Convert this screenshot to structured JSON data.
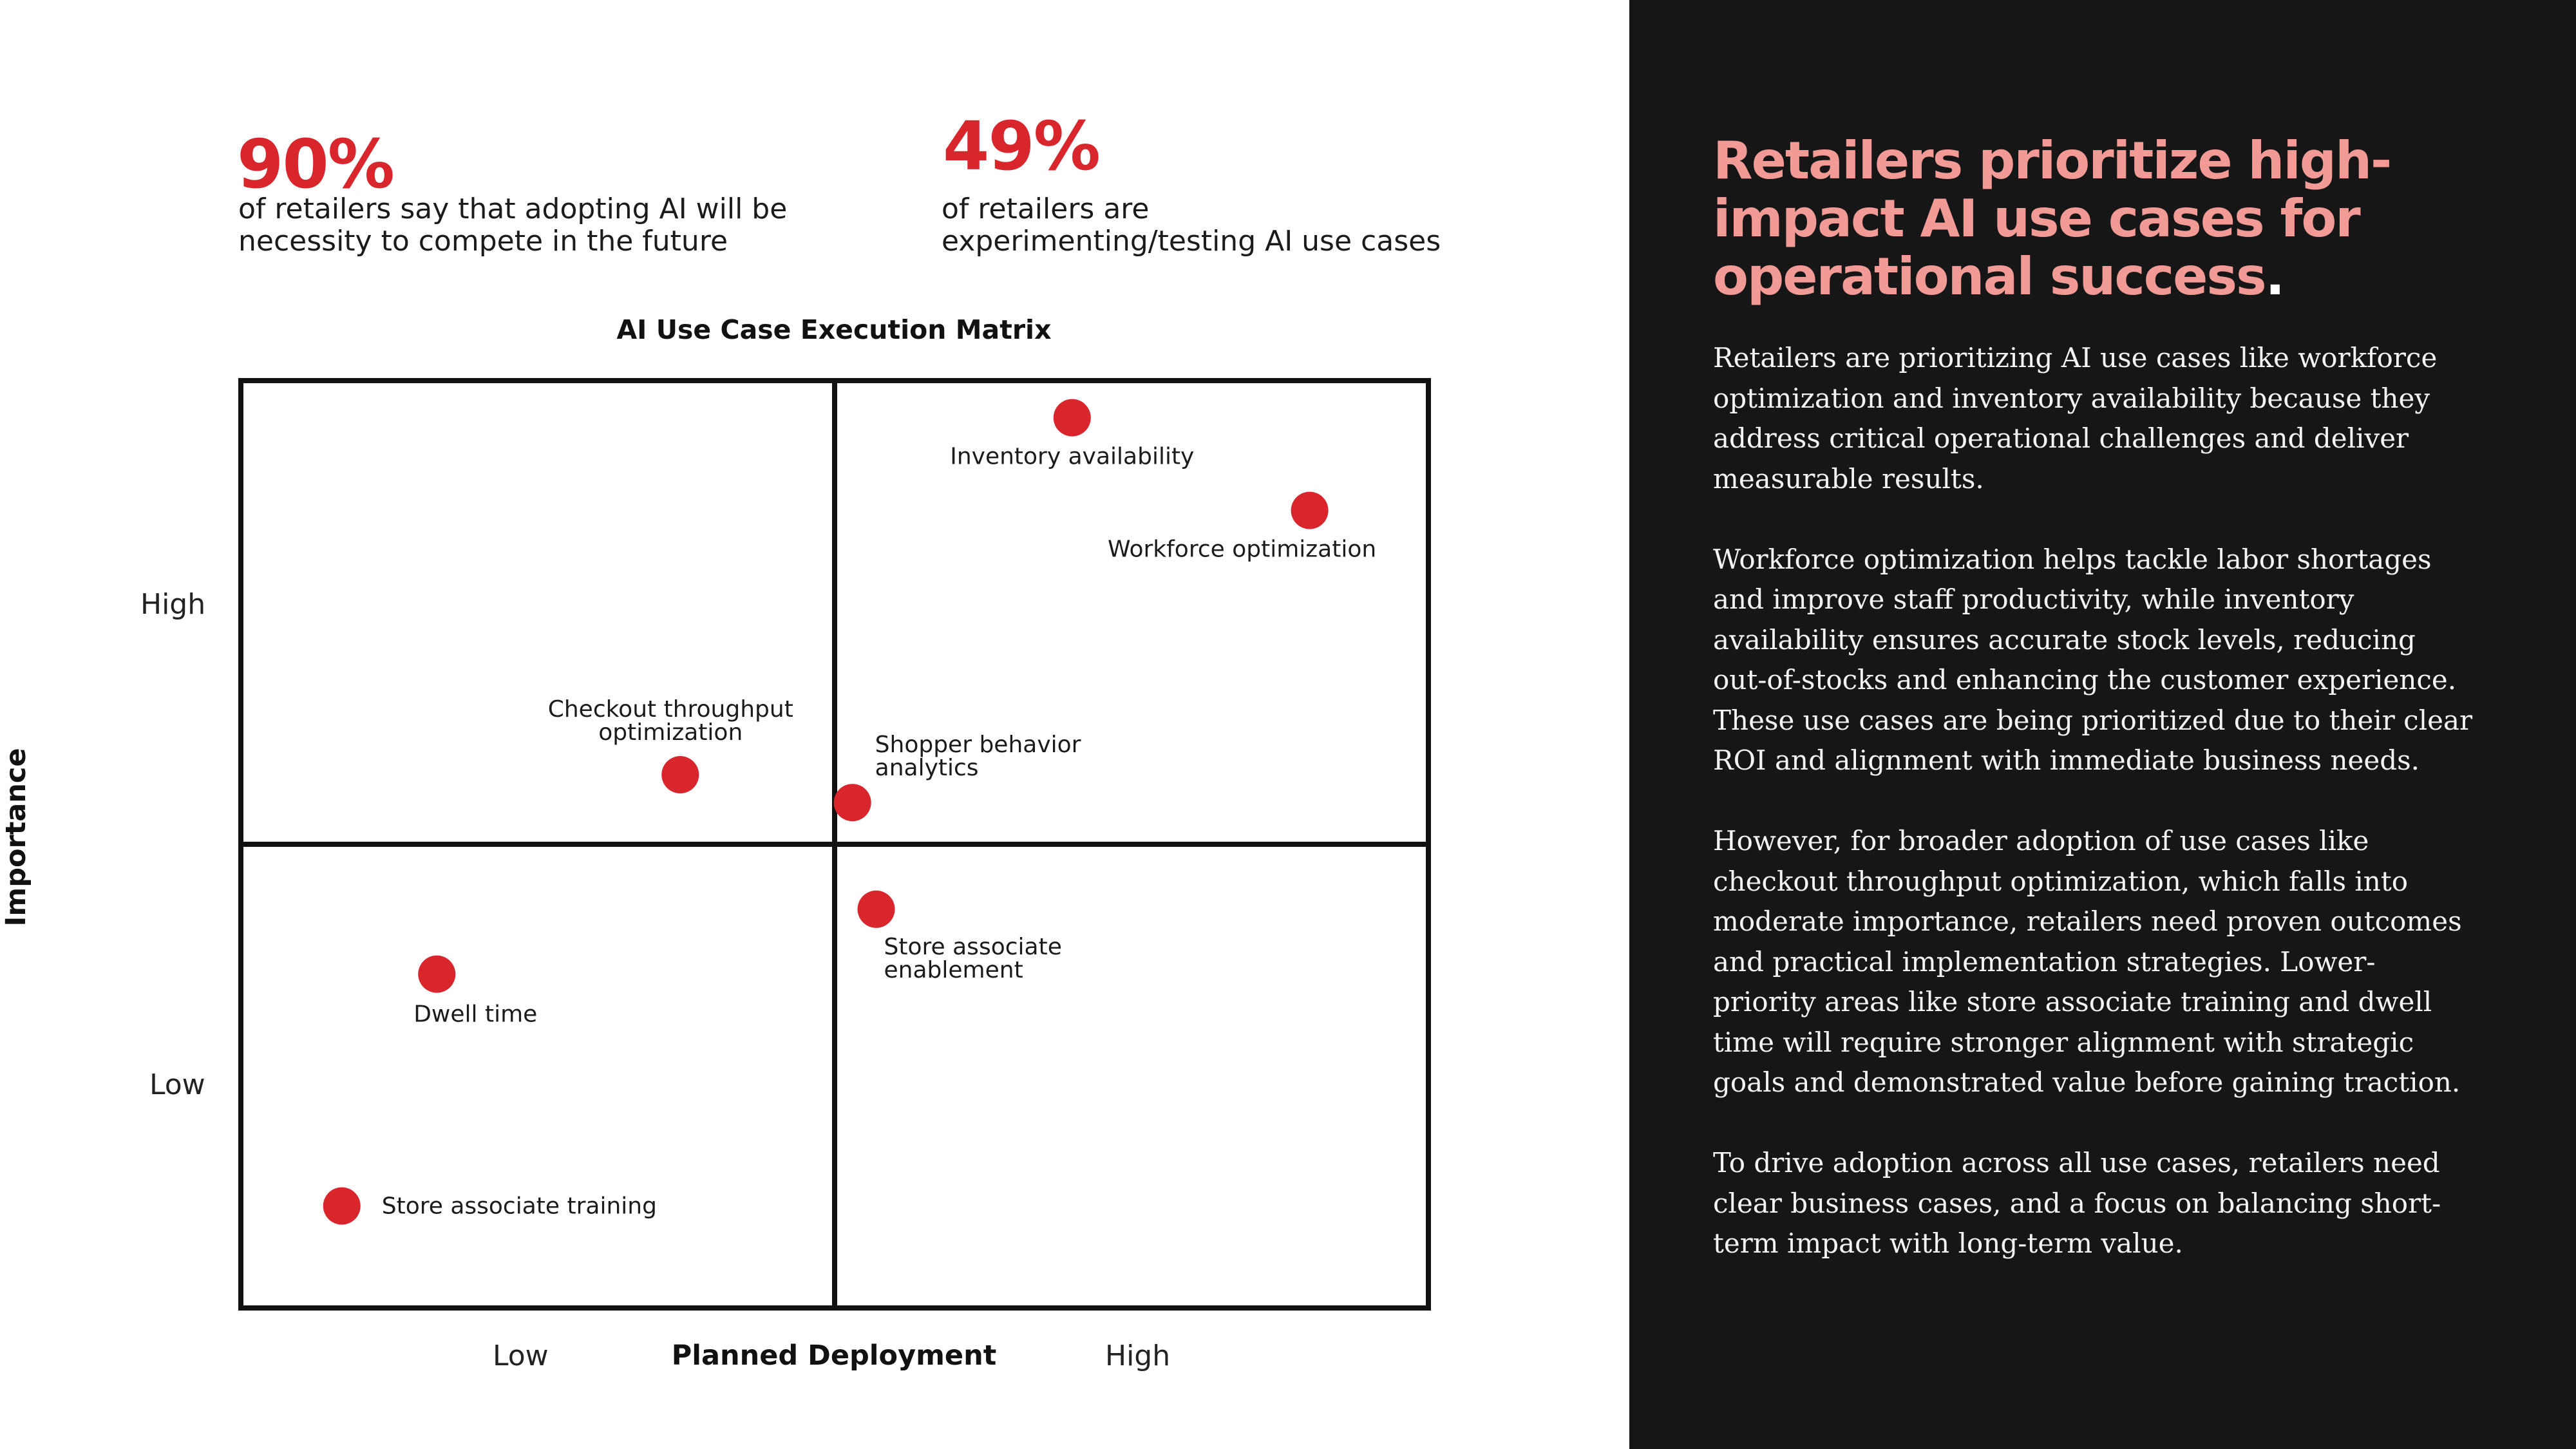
{
  "stats": [
    {
      "value": "90%",
      "description": "of retailers say that adopting AI will be necessity to compete in the future"
    },
    {
      "value": "49%",
      "description": "of retailers are experimenting/testing AI use cases"
    }
  ],
  "panel": {
    "title": "Retailers prioritize high-impact AI use cases for operational success",
    "title_end": ".",
    "paragraphs": [
      "Retailers are prioritizing AI use cases like workforce optimization and inventory availability because they address critical operational challenges and deliver measurable results.",
      "Workforce optimization helps tackle labor shortages and improve staff productivity, while inventory availability ensures accurate stock levels, reducing out-of-stocks and enhancing the customer experience. These use cases are being prioritized due to their clear ROI and alignment with immediate business needs.",
      "However, for broader adoption of use cases like checkout throughput optimization, which falls into moderate importance, retailers need proven outcomes and practical implementation strategies. Lower-priority areas like store associate training and dwell time will require stronger alignment with strategic goals and demonstrated value before gaining traction.",
      "To drive adoption across all use cases, retailers need clear business cases, and a focus on balancing short-term impact with long-term value."
    ]
  },
  "chart_data": {
    "type": "scatter",
    "title": "AI Use Case Execution Matrix",
    "xlabel": "Planned Deployment",
    "ylabel": "Importance",
    "x_ticks": [
      "Low",
      "High"
    ],
    "y_ticks": [
      "High",
      "Low"
    ],
    "xlim": [
      0,
      1
    ],
    "ylim": [
      0,
      1
    ],
    "grid": "quadrants",
    "point_color": "#d8262c",
    "points": [
      {
        "label": "Inventory availability",
        "x": 0.7,
        "y": 0.96
      },
      {
        "label": "Workforce optimization",
        "x": 0.9,
        "y": 0.86
      },
      {
        "label": "Checkout throughput optimization",
        "x": 0.37,
        "y": 0.575
      },
      {
        "label": "Shopper behavior analytics",
        "x": 0.515,
        "y": 0.545
      },
      {
        "label": "Store associate enablement",
        "x": 0.535,
        "y": 0.43
      },
      {
        "label": "Dwell time",
        "x": 0.165,
        "y": 0.36
      },
      {
        "label": "Store associate training",
        "x": 0.085,
        "y": 0.11
      }
    ]
  }
}
